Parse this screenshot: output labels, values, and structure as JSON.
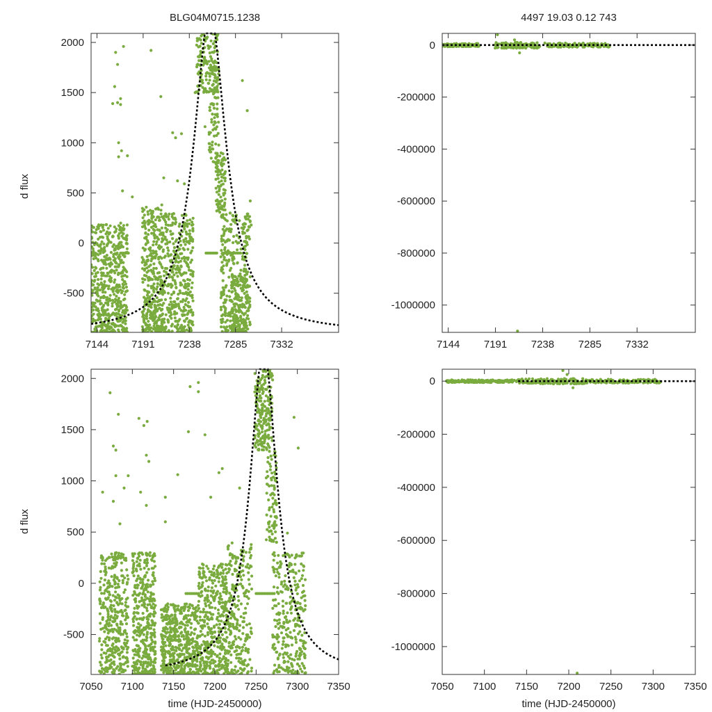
{
  "figure": {
    "title_left": "BLG04M0715.1238",
    "title_right": "4497  19.03  0.12  743",
    "ylabel": "d flux",
    "xlabel": "time (HJD-2450000)"
  },
  "colors": {
    "points": "#7aab3e",
    "model": "#000000",
    "axis": "#333333",
    "background": "#ffffff"
  },
  "chart_data": [
    {
      "type": "scatter",
      "id": "top-left",
      "title": "BLG04M0715.1238",
      "xlabel": "",
      "ylabel": "d flux",
      "xlim": [
        7138,
        7390
      ],
      "ylim": [
        -890,
        2090
      ],
      "xticks": [
        7144,
        7191,
        7238,
        7285,
        7332
      ],
      "yticks": [
        2000,
        1500,
        1000,
        500,
        0,
        -500
      ],
      "model": {
        "t0": 7259,
        "peak": 2290,
        "tE": 20,
        "baseline": -890,
        "range": [
          7138,
          7390
        ]
      },
      "clusters": [
        {
          "x": [
            7138,
            7175
          ],
          "y": [
            -890,
            200
          ],
          "n": 560
        },
        {
          "x": [
            7190,
            7210
          ],
          "y": [
            -890,
            360
          ],
          "n": 360
        },
        {
          "x": [
            7210,
            7242
          ],
          "y": [
            -890,
            300
          ],
          "n": 420
        },
        {
          "x": [
            7245,
            7268
          ],
          "y": [
            1500,
            2090
          ],
          "n": 180
        },
        {
          "x": [
            7258,
            7268
          ],
          "y": [
            800,
            1500
          ],
          "n": 60
        },
        {
          "x": [
            7265,
            7275
          ],
          "y": [
            300,
            900
          ],
          "n": 90
        },
        {
          "x": [
            7270,
            7300
          ],
          "y": [
            -890,
            300
          ],
          "n": 320
        },
        {
          "x": [
            7280,
            7300
          ],
          "y": [
            -890,
            -300
          ],
          "n": 120
        }
      ],
      "lines": [
        {
          "x": [
            7168,
            7176
          ],
          "y": -100,
          "n": 6
        },
        {
          "x": [
            7255,
            7266
          ],
          "y": -100,
          "n": 8
        },
        {
          "x": [
            7272,
            7290
          ],
          "y": -100,
          "n": 12
        }
      ],
      "outliers": [
        [
          7163,
          1900
        ],
        [
          7165,
          1780
        ],
        [
          7171,
          1960
        ],
        [
          7162,
          1560
        ],
        [
          7165,
          1400
        ],
        [
          7160,
          1390
        ],
        [
          7168,
          1440
        ],
        [
          7168,
          1380
        ],
        [
          7166,
          1000
        ],
        [
          7169,
          920
        ],
        [
          7166,
          860
        ],
        [
          7175,
          870
        ],
        [
          7199,
          1920
        ],
        [
          7209,
          1460
        ],
        [
          7221,
          1100
        ],
        [
          7224,
          1050
        ],
        [
          7230,
          1090
        ],
        [
          7212,
          650
        ],
        [
          7226,
          620
        ],
        [
          7244,
          1500
        ],
        [
          7292,
          1620
        ],
        [
          7297,
          1320
        ],
        [
          7254,
          1160
        ],
        [
          7233,
          590
        ],
        [
          7170,
          520
        ],
        [
          7180,
          460
        ],
        [
          7210,
          380
        ],
        [
          7285,
          200
        ],
        [
          7300,
          420
        ],
        [
          7301,
          180
        ]
      ]
    },
    {
      "type": "scatter",
      "id": "top-right",
      "title": "4497  19.03  0.12  743",
      "xlim": [
        7138,
        7390
      ],
      "ylim": [
        -1105000,
        45000
      ],
      "xticks": [
        7144,
        7191,
        7238,
        7285,
        7332
      ],
      "yticks": [
        0,
        -200000,
        -400000,
        -600000,
        -800000,
        -1000000
      ],
      "ytick_labels": [
        "0",
        "-200000",
        "-400000",
        "-600000",
        "-800000",
        "-1000000"
      ],
      "model": {
        "type": "flat",
        "y": 0,
        "range": [
          7138,
          7390
        ]
      },
      "clusters": [
        {
          "x": [
            7138,
            7175
          ],
          "y": [
            -6000,
            6000
          ],
          "n": 120
        },
        {
          "x": [
            7190,
            7235
          ],
          "y": [
            -12000,
            10000
          ],
          "n": 130
        },
        {
          "x": [
            7240,
            7305
          ],
          "y": [
            -8000,
            8000
          ],
          "n": 150
        }
      ],
      "outliers": [
        [
          7193,
          40000
        ],
        [
          7213,
          -1100000
        ],
        [
          7210,
          20000
        ],
        [
          7215,
          -30000
        ]
      ]
    },
    {
      "type": "scatter",
      "id": "bottom-left",
      "xlabel": "time (HJD-2450000)",
      "ylabel": "d flux",
      "xlim": [
        7050,
        7350
      ],
      "ylim": [
        -890,
        2090
      ],
      "xticks": [
        7050,
        7100,
        7150,
        7200,
        7250,
        7300,
        7350
      ],
      "yticks": [
        2000,
        1500,
        1000,
        500,
        0,
        -500
      ],
      "model": {
        "t0": 7259,
        "peak": 2290,
        "tE": 20,
        "baseline": -890,
        "range": [
          7140,
          7350
        ]
      },
      "clusters": [
        {
          "x": [
            7060,
            7095
          ],
          "y": [
            -890,
            300
          ],
          "n": 380
        },
        {
          "x": [
            7100,
            7128
          ],
          "y": [
            -890,
            300
          ],
          "n": 420
        },
        {
          "x": [
            7135,
            7180
          ],
          "y": [
            -890,
            -200
          ],
          "n": 500
        },
        {
          "x": [
            7180,
            7215
          ],
          "y": [
            -890,
            200
          ],
          "n": 420
        },
        {
          "x": [
            7215,
            7245
          ],
          "y": [
            -890,
            400
          ],
          "n": 260
        },
        {
          "x": [
            7248,
            7270
          ],
          "y": [
            1300,
            2090
          ],
          "n": 200
        },
        {
          "x": [
            7262,
            7275
          ],
          "y": [
            400,
            1300
          ],
          "n": 90
        },
        {
          "x": [
            7270,
            7310
          ],
          "y": [
            -890,
            300
          ],
          "n": 300
        }
      ],
      "lines": [
        {
          "x": [
            7165,
            7180
          ],
          "y": -100,
          "n": 8
        },
        {
          "x": [
            7250,
            7272
          ],
          "y": -100,
          "n": 12
        }
      ],
      "outliers": [
        [
          7073,
          1860
        ],
        [
          7083,
          1650
        ],
        [
          7077,
          1340
        ],
        [
          7080,
          1300
        ],
        [
          7064,
          890
        ],
        [
          7077,
          800
        ],
        [
          7080,
          1050
        ],
        [
          7090,
          930
        ],
        [
          7095,
          1050
        ],
        [
          7108,
          1610
        ],
        [
          7114,
          1540
        ],
        [
          7118,
          1580
        ],
        [
          7117,
          1250
        ],
        [
          7120,
          1190
        ],
        [
          7110,
          890
        ],
        [
          7117,
          760
        ],
        [
          7140,
          840
        ],
        [
          7168,
          1480
        ],
        [
          7180,
          1960
        ],
        [
          7180,
          1870
        ],
        [
          7188,
          1450
        ],
        [
          7170,
          1920
        ],
        [
          7205,
          1080
        ],
        [
          7209,
          1120
        ],
        [
          7195,
          840
        ],
        [
          7230,
          930
        ],
        [
          7296,
          1620
        ],
        [
          7301,
          1320
        ],
        [
          7288,
          490
        ],
        [
          7155,
          1060
        ],
        [
          7140,
          600
        ],
        [
          7085,
          580
        ]
      ]
    },
    {
      "type": "scatter",
      "id": "bottom-right",
      "xlabel": "time (HJD-2450000)",
      "xlim": [
        7050,
        7350
      ],
      "ylim": [
        -1105000,
        45000
      ],
      "xticks": [
        7050,
        7100,
        7150,
        7200,
        7250,
        7300,
        7350
      ],
      "yticks": [
        0,
        -200000,
        -400000,
        -600000,
        -800000,
        -1000000
      ],
      "ytick_labels": [
        "0",
        "-200000",
        "-400000",
        "-600000",
        "-800000",
        "-1000000"
      ],
      "model": {
        "type": "flat",
        "y": 0,
        "range": [
          7140,
          7350
        ]
      },
      "clusters": [
        {
          "x": [
            7055,
            7140
          ],
          "y": [
            -5000,
            5000
          ],
          "n": 200
        },
        {
          "x": [
            7140,
            7220
          ],
          "y": [
            -10000,
            10000
          ],
          "n": 150
        },
        {
          "x": [
            7220,
            7310
          ],
          "y": [
            -7000,
            7000
          ],
          "n": 150
        }
      ],
      "outliers": [
        [
          7193,
          40000
        ],
        [
          7210,
          -1100000
        ],
        [
          7198,
          25000
        ],
        [
          7205,
          -25000
        ]
      ]
    }
  ]
}
